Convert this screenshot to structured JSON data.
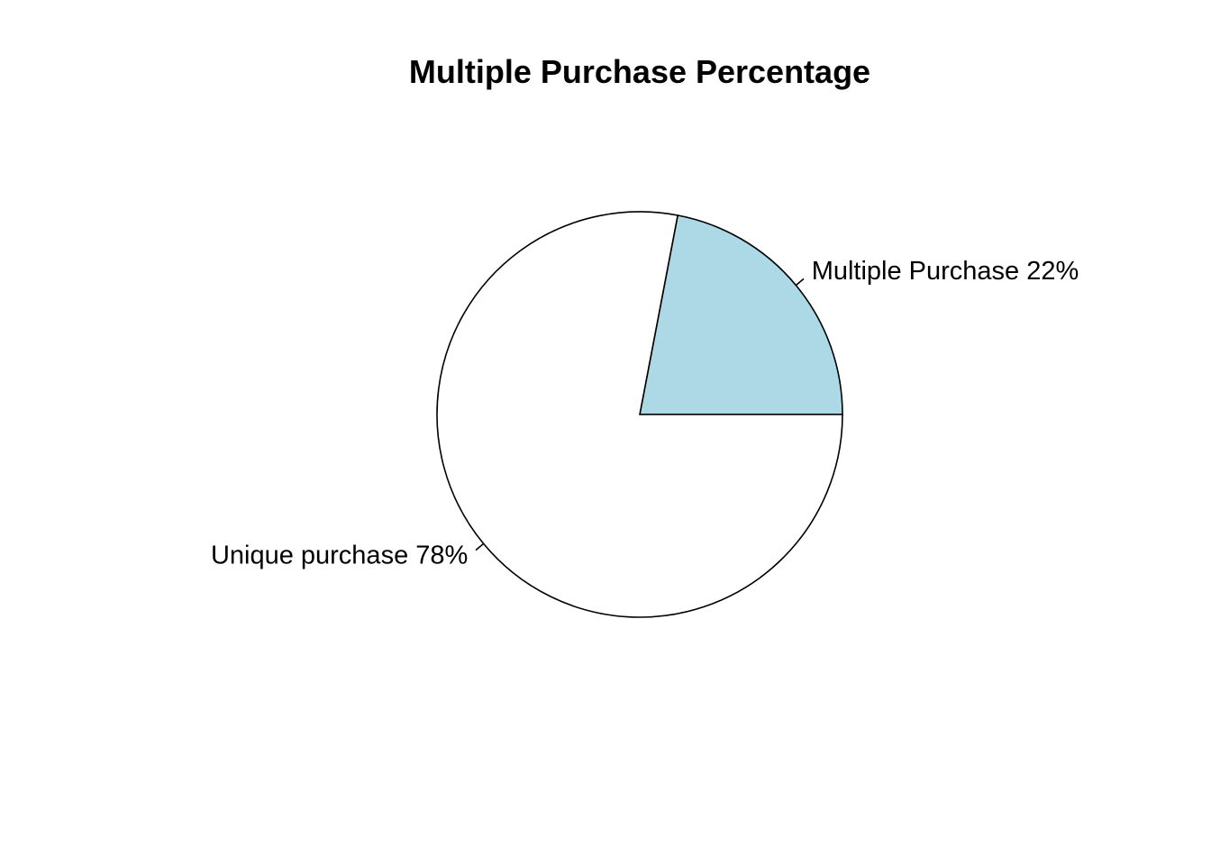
{
  "chart_data": {
    "type": "pie",
    "title": "Multiple Purchase Percentage",
    "direction": "counterclockwise",
    "start_angle_deg": 0,
    "slices": [
      {
        "name": "Multiple Purchase",
        "value": 22,
        "label": "Multiple Purchase 22%",
        "color": "#ADD8E6"
      },
      {
        "name": "Unique purchase",
        "value": 78,
        "label": "Unique purchase 78%",
        "color": "#FFFFFF"
      }
    ]
  }
}
